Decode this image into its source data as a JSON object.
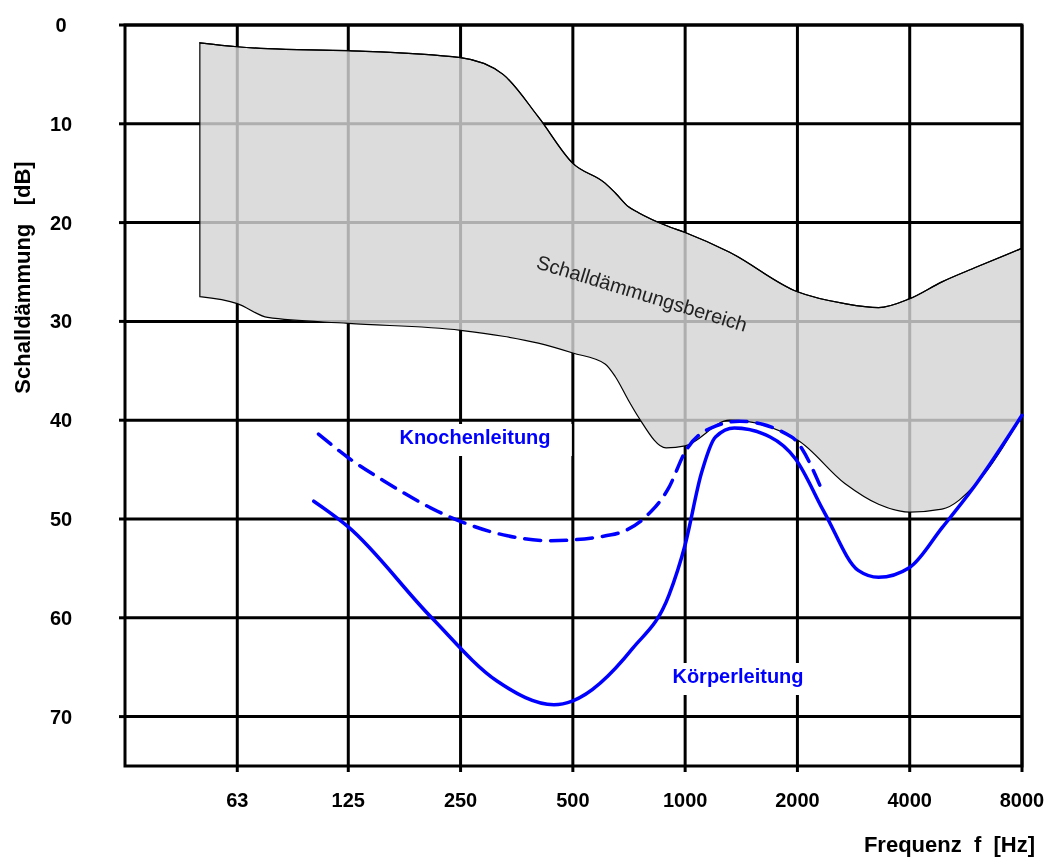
{
  "chart_data": {
    "type": "line",
    "xlabel": "Frequenz  f  [Hz]",
    "ylabel": "Schalldämmung   [dB]",
    "log": "x",
    "xlim": [
      31.5,
      8000
    ],
    "ylim": [
      75,
      0
    ],
    "xticks": [
      63,
      125,
      250,
      500,
      1000,
      2000,
      4000,
      8000
    ],
    "yticks": [
      0,
      10,
      20,
      30,
      40,
      50,
      60,
      70
    ],
    "grid": true,
    "series": [
      {
        "name": "Schalldämmungsbereich",
        "color": "#000000",
        "x": [
          50,
          63,
          76,
          125,
          250,
          325,
          404,
          500,
          610,
          650,
          705,
          750,
          889,
          1000,
          1316,
          2000,
          2680,
          3300,
          4000,
          4880,
          6040,
          8000
        ],
        "values": [
          1.8,
          2.2,
          2.4,
          2.6,
          3.3,
          5,
          9.3,
          14,
          16,
          17,
          18.4,
          19,
          20.3,
          21,
          23,
          27,
          28.2,
          28.6,
          27.7,
          26,
          24.5,
          22.6
        ],
        "lower": [
          1.8,
          2.2,
          2.4,
          2.6,
          3.3,
          5,
          9.3,
          14,
          16,
          17,
          18.4,
          19,
          20.3,
          21,
          23,
          27,
          28.2,
          28.6,
          27.7,
          26,
          24.5,
          22.6
        ],
        "upper": [
          27.5,
          28.2,
          29.6,
          30.2,
          30.9,
          31.5,
          32.2,
          33.2,
          34.3,
          35.6,
          38,
          39.7,
          42.8,
          42.6,
          40,
          42,
          46.4,
          48.5,
          49.3,
          49,
          46.4,
          39.5
        ]
      },
      {
        "name": "Knochenleitung",
        "color": "#0000ff",
        "line_style": "dashed",
        "x": [
          104,
          125,
          155,
          231,
          334,
          434,
          634,
          788,
          905,
          1000,
          1206,
          1400,
          1930,
          2310
        ],
        "values": [
          41.4,
          43.8,
          46.1,
          49.7,
          51.7,
          52.2,
          51.6,
          49.7,
          46.8,
          43.2,
          40.6,
          40.1,
          41.7,
          46.8
        ]
      },
      {
        "name": "Körperleitung",
        "color": "#0000ff",
        "line_style": "solid",
        "x": [
          101,
          125,
          208,
          313,
          445,
          500,
          723,
          905,
          1000,
          1105,
          1206,
          1355,
          1690,
          1975,
          2367,
          2910,
          3300,
          4000,
          4880,
          6040,
          8000
        ],
        "values": [
          48.2,
          50.8,
          59.9,
          66.4,
          68.8,
          68.4,
          63.1,
          57.7,
          52.6,
          45.4,
          41.7,
          40.8,
          41.7,
          43.9,
          49.4,
          55.2,
          55.9,
          54.9,
          50.9,
          46.4,
          39.5
        ]
      }
    ]
  }
}
